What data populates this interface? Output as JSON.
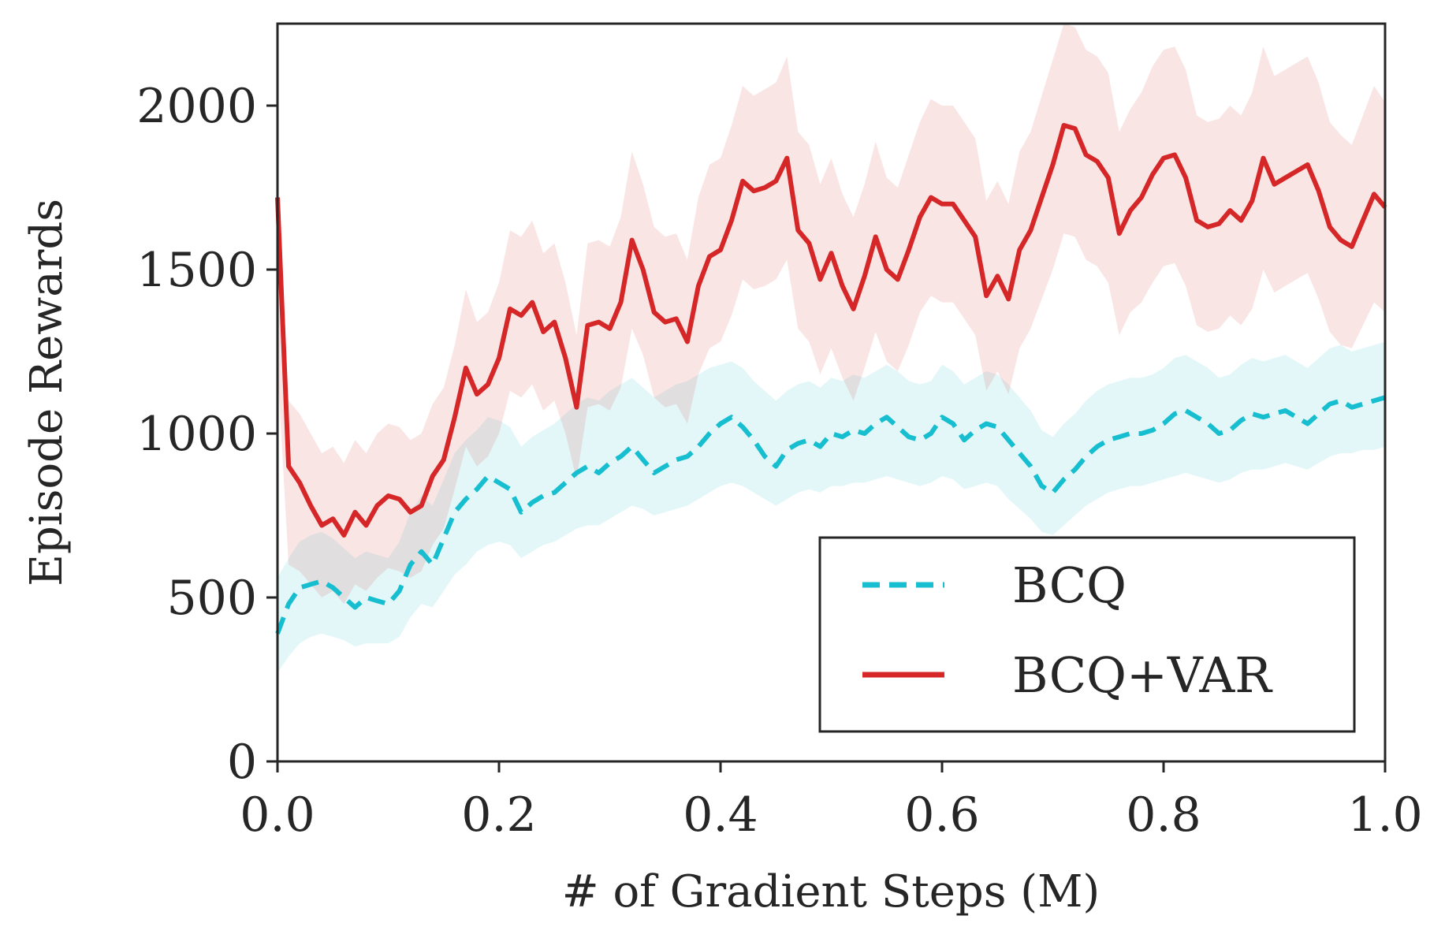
{
  "chart_data": {
    "type": "line",
    "title": "",
    "xlabel": "# of Gradient Steps (M)",
    "ylabel": "Episode Rewards",
    "xlim": [
      0.0,
      1.0
    ],
    "ylim": [
      0,
      2250
    ],
    "xticks": [
      0.0,
      0.2,
      0.4,
      0.6,
      0.8,
      1.0
    ],
    "xtick_labels": [
      "0.0",
      "0.2",
      "0.4",
      "0.6",
      "0.8",
      "1.0"
    ],
    "yticks": [
      0,
      500,
      1000,
      1500,
      2000
    ],
    "ytick_labels": [
      "0",
      "500",
      "1000",
      "1500",
      "2000"
    ],
    "grid": false,
    "legend_position": "bottom-right",
    "x": [
      0.0,
      0.01,
      0.02,
      0.03,
      0.04,
      0.05,
      0.06,
      0.07,
      0.08,
      0.09,
      0.1,
      0.11,
      0.12,
      0.13,
      0.14,
      0.15,
      0.16,
      0.17,
      0.18,
      0.19,
      0.2,
      0.21,
      0.22,
      0.23,
      0.24,
      0.25,
      0.26,
      0.27,
      0.28,
      0.29,
      0.3,
      0.31,
      0.32,
      0.33,
      0.34,
      0.35,
      0.36,
      0.37,
      0.38,
      0.39,
      0.4,
      0.41,
      0.42,
      0.43,
      0.44,
      0.45,
      0.46,
      0.47,
      0.48,
      0.49,
      0.5,
      0.51,
      0.52,
      0.53,
      0.54,
      0.55,
      0.56,
      0.57,
      0.58,
      0.59,
      0.6,
      0.61,
      0.62,
      0.63,
      0.64,
      0.65,
      0.66,
      0.67,
      0.68,
      0.69,
      0.7,
      0.71,
      0.72,
      0.73,
      0.74,
      0.75,
      0.76,
      0.77,
      0.78,
      0.79,
      0.8,
      0.81,
      0.82,
      0.83,
      0.84,
      0.85,
      0.86,
      0.87,
      0.88,
      0.89,
      0.9,
      0.91,
      0.92,
      0.93,
      0.94,
      0.95,
      0.96,
      0.97,
      0.98,
      0.99,
      1.0
    ],
    "series": [
      {
        "name": "BCQ",
        "color": "#17becf",
        "style": "dashed",
        "values": [
          390,
          480,
          530,
          540,
          550,
          530,
          500,
          470,
          500,
          490,
          480,
          520,
          600,
          640,
          600,
          680,
          760,
          800,
          830,
          870,
          850,
          830,
          760,
          790,
          810,
          820,
          850,
          880,
          900,
          880,
          910,
          930,
          960,
          920,
          880,
          900,
          920,
          930,
          960,
          1000,
          1030,
          1050,
          1020,
          980,
          930,
          900,
          950,
          970,
          980,
          960,
          1000,
          990,
          1010,
          1000,
          1030,
          1050,
          1020,
          990,
          980,
          1000,
          1050,
          1030,
          980,
          1010,
          1030,
          1020,
          980,
          940,
          900,
          840,
          820,
          860,
          890,
          930,
          960,
          980,
          990,
          1000,
          1000,
          1010,
          1030,
          1060,
          1070,
          1050,
          1030,
          1000,
          1010,
          1040,
          1060,
          1050,
          1060,
          1070,
          1050,
          1030,
          1060,
          1090,
          1100,
          1080,
          1090,
          1100,
          1110
        ],
        "lower": [
          270,
          320,
          360,
          380,
          390,
          380,
          370,
          350,
          360,
          360,
          360,
          380,
          440,
          480,
          470,
          520,
          570,
          600,
          640,
          660,
          670,
          660,
          620,
          640,
          660,
          670,
          690,
          710,
          720,
          720,
          740,
          760,
          780,
          770,
          750,
          760,
          770,
          780,
          800,
          820,
          840,
          850,
          840,
          820,
          800,
          780,
          800,
          820,
          830,
          820,
          840,
          840,
          850,
          850,
          860,
          870,
          860,
          850,
          840,
          850,
          870,
          860,
          830,
          840,
          850,
          840,
          800,
          770,
          740,
          700,
          690,
          720,
          750,
          780,
          800,
          820,
          830,
          840,
          840,
          850,
          860,
          870,
          880,
          870,
          860,
          850,
          860,
          880,
          890,
          890,
          900,
          910,
          900,
          890,
          910,
          930,
          940,
          940,
          950,
          950,
          960
        ],
        "upper": [
          560,
          620,
          670,
          690,
          700,
          680,
          650,
          620,
          640,
          630,
          620,
          670,
          760,
          810,
          780,
          860,
          940,
          980,
          1010,
          1050,
          1040,
          1020,
          960,
          990,
          1010,
          1030,
          1060,
          1090,
          1110,
          1100,
          1130,
          1150,
          1170,
          1140,
          1110,
          1130,
          1150,
          1160,
          1180,
          1200,
          1210,
          1220,
          1200,
          1160,
          1130,
          1100,
          1130,
          1150,
          1160,
          1140,
          1170,
          1160,
          1180,
          1170,
          1190,
          1210,
          1190,
          1160,
          1150,
          1160,
          1210,
          1190,
          1150,
          1170,
          1190,
          1180,
          1150,
          1110,
          1070,
          1010,
          990,
          1030,
          1060,
          1100,
          1130,
          1150,
          1160,
          1170,
          1170,
          1180,
          1200,
          1230,
          1240,
          1220,
          1200,
          1170,
          1180,
          1210,
          1230,
          1220,
          1230,
          1240,
          1220,
          1200,
          1230,
          1260,
          1270,
          1250,
          1260,
          1270,
          1280
        ]
      },
      {
        "name": "BCQ+VAR",
        "color": "#d62728",
        "style": "solid",
        "values": [
          1720,
          900,
          850,
          780,
          720,
          740,
          690,
          760,
          720,
          780,
          810,
          800,
          760,
          780,
          870,
          920,
          1050,
          1200,
          1120,
          1150,
          1230,
          1380,
          1360,
          1400,
          1310,
          1340,
          1230,
          1080,
          1330,
          1340,
          1320,
          1400,
          1590,
          1500,
          1370,
          1340,
          1350,
          1280,
          1450,
          1540,
          1560,
          1650,
          1770,
          1740,
          1750,
          1770,
          1840,
          1620,
          1580,
          1470,
          1550,
          1450,
          1380,
          1480,
          1600,
          1500,
          1470,
          1560,
          1660,
          1720,
          1700,
          1700,
          1650,
          1600,
          1420,
          1480,
          1410,
          1560,
          1620,
          1720,
          1820,
          1940,
          1930,
          1850,
          1830,
          1780,
          1610,
          1680,
          1720,
          1790,
          1840,
          1850,
          1780,
          1650,
          1630,
          1640,
          1680,
          1650,
          1710,
          1840,
          1760,
          1780,
          1800,
          1820,
          1740,
          1630,
          1590,
          1570,
          1650,
          1730,
          1690
        ],
        "lower": [
          1200,
          600,
          580,
          540,
          500,
          520,
          480,
          540,
          520,
          560,
          590,
          580,
          560,
          580,
          660,
          710,
          830,
          960,
          900,
          930,
          1000,
          1130,
          1110,
          1150,
          1070,
          1100,
          1000,
          860,
          1080,
          1090,
          1070,
          1140,
          1320,
          1240,
          1110,
          1080,
          1090,
          1030,
          1180,
          1260,
          1280,
          1360,
          1470,
          1440,
          1450,
          1470,
          1530,
          1320,
          1280,
          1180,
          1260,
          1170,
          1100,
          1200,
          1310,
          1220,
          1190,
          1270,
          1370,
          1420,
          1400,
          1400,
          1350,
          1300,
          1130,
          1190,
          1120,
          1260,
          1320,
          1410,
          1500,
          1610,
          1600,
          1530,
          1510,
          1460,
          1300,
          1370,
          1400,
          1460,
          1510,
          1520,
          1450,
          1330,
          1310,
          1320,
          1360,
          1330,
          1380,
          1500,
          1430,
          1450,
          1470,
          1490,
          1410,
          1310,
          1270,
          1260,
          1330,
          1400,
          1370
        ],
        "upper": [
          1800,
          1100,
          1060,
          1000,
          940,
          960,
          910,
          980,
          940,
          1000,
          1030,
          1020,
          980,
          1000,
          1090,
          1140,
          1270,
          1440,
          1340,
          1370,
          1460,
          1620,
          1600,
          1650,
          1550,
          1580,
          1460,
          1300,
          1580,
          1590,
          1570,
          1660,
          1860,
          1760,
          1630,
          1600,
          1610,
          1530,
          1720,
          1820,
          1840,
          1940,
          2060,
          2030,
          2050,
          2070,
          2150,
          1920,
          1880,
          1760,
          1840,
          1730,
          1660,
          1760,
          1890,
          1780,
          1750,
          1850,
          1950,
          2020,
          2000,
          2000,
          1950,
          1900,
          1710,
          1770,
          1700,
          1860,
          1920,
          2030,
          2140,
          2250,
          2240,
          2170,
          2150,
          2100,
          1920,
          1990,
          2040,
          2120,
          2170,
          2180,
          2110,
          1970,
          1950,
          1960,
          2000,
          1970,
          2040,
          2180,
          2090,
          2110,
          2130,
          2150,
          2070,
          1950,
          1910,
          1880,
          1970,
          2060,
          2010
        ]
      }
    ]
  }
}
